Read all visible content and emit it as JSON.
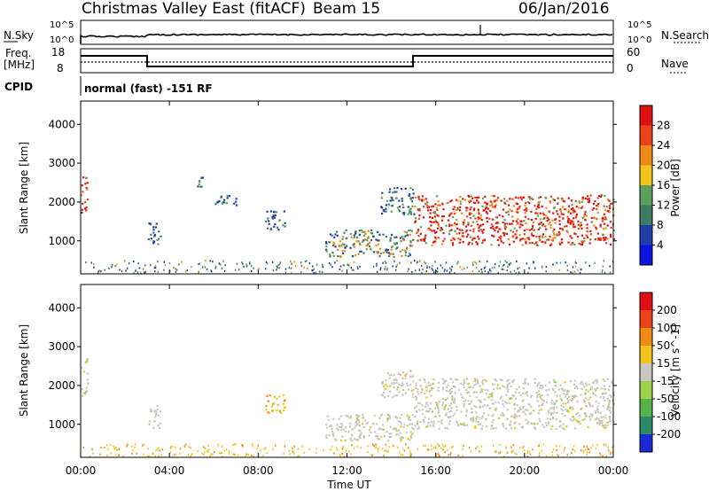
{
  "header": {
    "station": "Christmas Valley East (fitACF)",
    "beam": "Beam 15",
    "date": "06/Jan/2016"
  },
  "sky_panel": {
    "left_label": "N.Sky",
    "right_label": "N.Search",
    "left_ticks": [
      "10^5",
      "10^0"
    ],
    "right_ticks": [
      "10^5",
      "10^0"
    ]
  },
  "freq_panel": {
    "left_label_1": "Freq.",
    "left_label_2": "[MHz]",
    "right_label": "Nave",
    "left_ticks": [
      "18",
      "8"
    ],
    "right_ticks": [
      "60",
      "0"
    ]
  },
  "cpid_panel": {
    "label": "CPID",
    "value": "normal (fast) -151 RF"
  },
  "chart_data": [
    {
      "type": "heatmap",
      "name": "power",
      "ylabel": "Slant Range [km]",
      "yticks": [
        1000,
        2000,
        3000,
        4000
      ],
      "ylim": [
        150,
        4600
      ],
      "xlim_hours": [
        0,
        24
      ],
      "colorbar_label": "Power [dB]",
      "colorbar_ticks": [
        4,
        8,
        12,
        16,
        20,
        24,
        28
      ],
      "colorbar_colors": [
        "#0a12e0",
        "#1e3ea8",
        "#3f7a64",
        "#5aa05a",
        "#f2c41a",
        "#f08a16",
        "#e8431a",
        "#e01010"
      ],
      "regions": [
        {
          "t": [
            0.0,
            0.3
          ],
          "r": [
            1700,
            2700
          ],
          "level": "high"
        },
        {
          "t": [
            3.0,
            3.6
          ],
          "r": [
            900,
            1500
          ],
          "level": "low"
        },
        {
          "t": [
            5.2,
            5.5
          ],
          "r": [
            2400,
            2700
          ],
          "level": "low"
        },
        {
          "t": [
            6.0,
            7.0
          ],
          "r": [
            1900,
            2200
          ],
          "level": "low"
        },
        {
          "t": [
            8.3,
            9.2
          ],
          "r": [
            1300,
            1800
          ],
          "level": "low"
        },
        {
          "t": [
            11.0,
            15.0
          ],
          "r": [
            600,
            1300
          ],
          "level": "mid"
        },
        {
          "t": [
            13.5,
            15.0
          ],
          "r": [
            1700,
            2400
          ],
          "level": "low"
        },
        {
          "t": [
            15.0,
            24.0
          ],
          "r": [
            900,
            2200
          ],
          "level": "high"
        }
      ]
    },
    {
      "type": "heatmap",
      "name": "velocity",
      "ylabel": "Slant Range [km]",
      "yticks": [
        1000,
        2000,
        3000,
        4000
      ],
      "ylim": [
        150,
        4600
      ],
      "xlabel": "Time UT",
      "xticks": [
        "00:00",
        "04:00",
        "08:00",
        "12:00",
        "16:00",
        "20:00",
        "00:00"
      ],
      "xlim_hours": [
        0,
        24
      ],
      "colorbar_label": "Velocity [m s^-1]",
      "colorbar_ticks": [
        "200",
        "100",
        "50",
        "15",
        "-15",
        "-50",
        "-100",
        "-200"
      ],
      "colorbar_colors": [
        "#1a2bd6",
        "#2a8a6a",
        "#56b24a",
        "#9bd24a",
        "#c8c8c0",
        "#f2c41a",
        "#f08a16",
        "#e8431a",
        "#e01010"
      ],
      "regions": [
        {
          "t": [
            0.0,
            0.3
          ],
          "r": [
            1700,
            2700
          ],
          "level": "gray"
        },
        {
          "t": [
            3.0,
            3.6
          ],
          "r": [
            900,
            1500
          ],
          "level": "gray"
        },
        {
          "t": [
            8.3,
            9.2
          ],
          "r": [
            1300,
            1800
          ],
          "level": "yellow"
        },
        {
          "t": [
            11.0,
            15.0
          ],
          "r": [
            600,
            1300
          ],
          "level": "gray"
        },
        {
          "t": [
            13.5,
            15.0
          ],
          "r": [
            1700,
            2400
          ],
          "level": "gray"
        },
        {
          "t": [
            15.0,
            24.0
          ],
          "r": [
            900,
            2200
          ],
          "level": "gray"
        }
      ]
    }
  ]
}
